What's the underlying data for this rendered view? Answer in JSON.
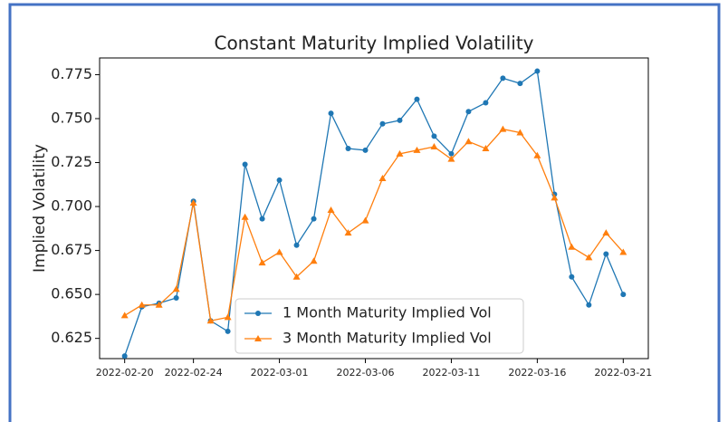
{
  "chart_data": {
    "type": "line",
    "title": "Constant Maturity Implied Volatility",
    "y_label": "Implied Volatility",
    "x": [
      "2022-02-20",
      "2022-02-21",
      "2022-02-22",
      "2022-02-23",
      "2022-02-24",
      "2022-02-25",
      "2022-02-26",
      "2022-02-27",
      "2022-02-28",
      "2022-03-01",
      "2022-03-02",
      "2022-03-03",
      "2022-03-04",
      "2022-03-05",
      "2022-03-06",
      "2022-03-07",
      "2022-03-08",
      "2022-03-09",
      "2022-03-10",
      "2022-03-11",
      "2022-03-12",
      "2022-03-13",
      "2022-03-14",
      "2022-03-15",
      "2022-03-16",
      "2022-03-17",
      "2022-03-18",
      "2022-03-19",
      "2022-03-20",
      "2022-03-21"
    ],
    "series": [
      {
        "name": "1 Month Maturity Implied Vol",
        "color": "#1f77b4",
        "marker": "circle",
        "values": [
          0.615,
          0.643,
          0.645,
          0.648,
          0.703,
          0.635,
          0.629,
          0.724,
          0.693,
          0.715,
          0.678,
          0.693,
          0.753,
          0.733,
          0.732,
          0.747,
          0.749,
          0.761,
          0.74,
          0.73,
          0.754,
          0.759,
          0.773,
          0.77,
          0.777,
          0.707,
          0.66,
          0.644,
          0.673,
          0.65
        ]
      },
      {
        "name": "3 Month Maturity Implied Vol",
        "color": "#ff7f0e",
        "marker": "triangle",
        "values": [
          0.638,
          0.644,
          0.644,
          0.653,
          0.702,
          0.635,
          0.637,
          0.694,
          0.668,
          0.674,
          0.66,
          0.669,
          0.698,
          0.685,
          0.692,
          0.716,
          0.73,
          0.732,
          0.734,
          0.727,
          0.737,
          0.733,
          0.744,
          0.742,
          0.729,
          0.705,
          0.677,
          0.671,
          0.685,
          0.674
        ]
      }
    ],
    "xlim": [
      "2022-02-18T13:00",
      "2022-03-22T11:00"
    ],
    "xticks": [
      "2022-02-20",
      "2022-02-24",
      "2022-03-01",
      "2022-03-06",
      "2022-03-11",
      "2022-03-16",
      "2022-03-21"
    ],
    "ylim": [
      0.6135,
      0.7845
    ],
    "yticks": [
      0.625,
      0.65,
      0.675,
      0.7,
      0.725,
      0.75,
      0.775
    ],
    "ytick_labels": [
      "0.625",
      "0.650",
      "0.675",
      "0.700",
      "0.725",
      "0.750",
      "0.775"
    ],
    "legend": "lower center",
    "grid": false
  }
}
